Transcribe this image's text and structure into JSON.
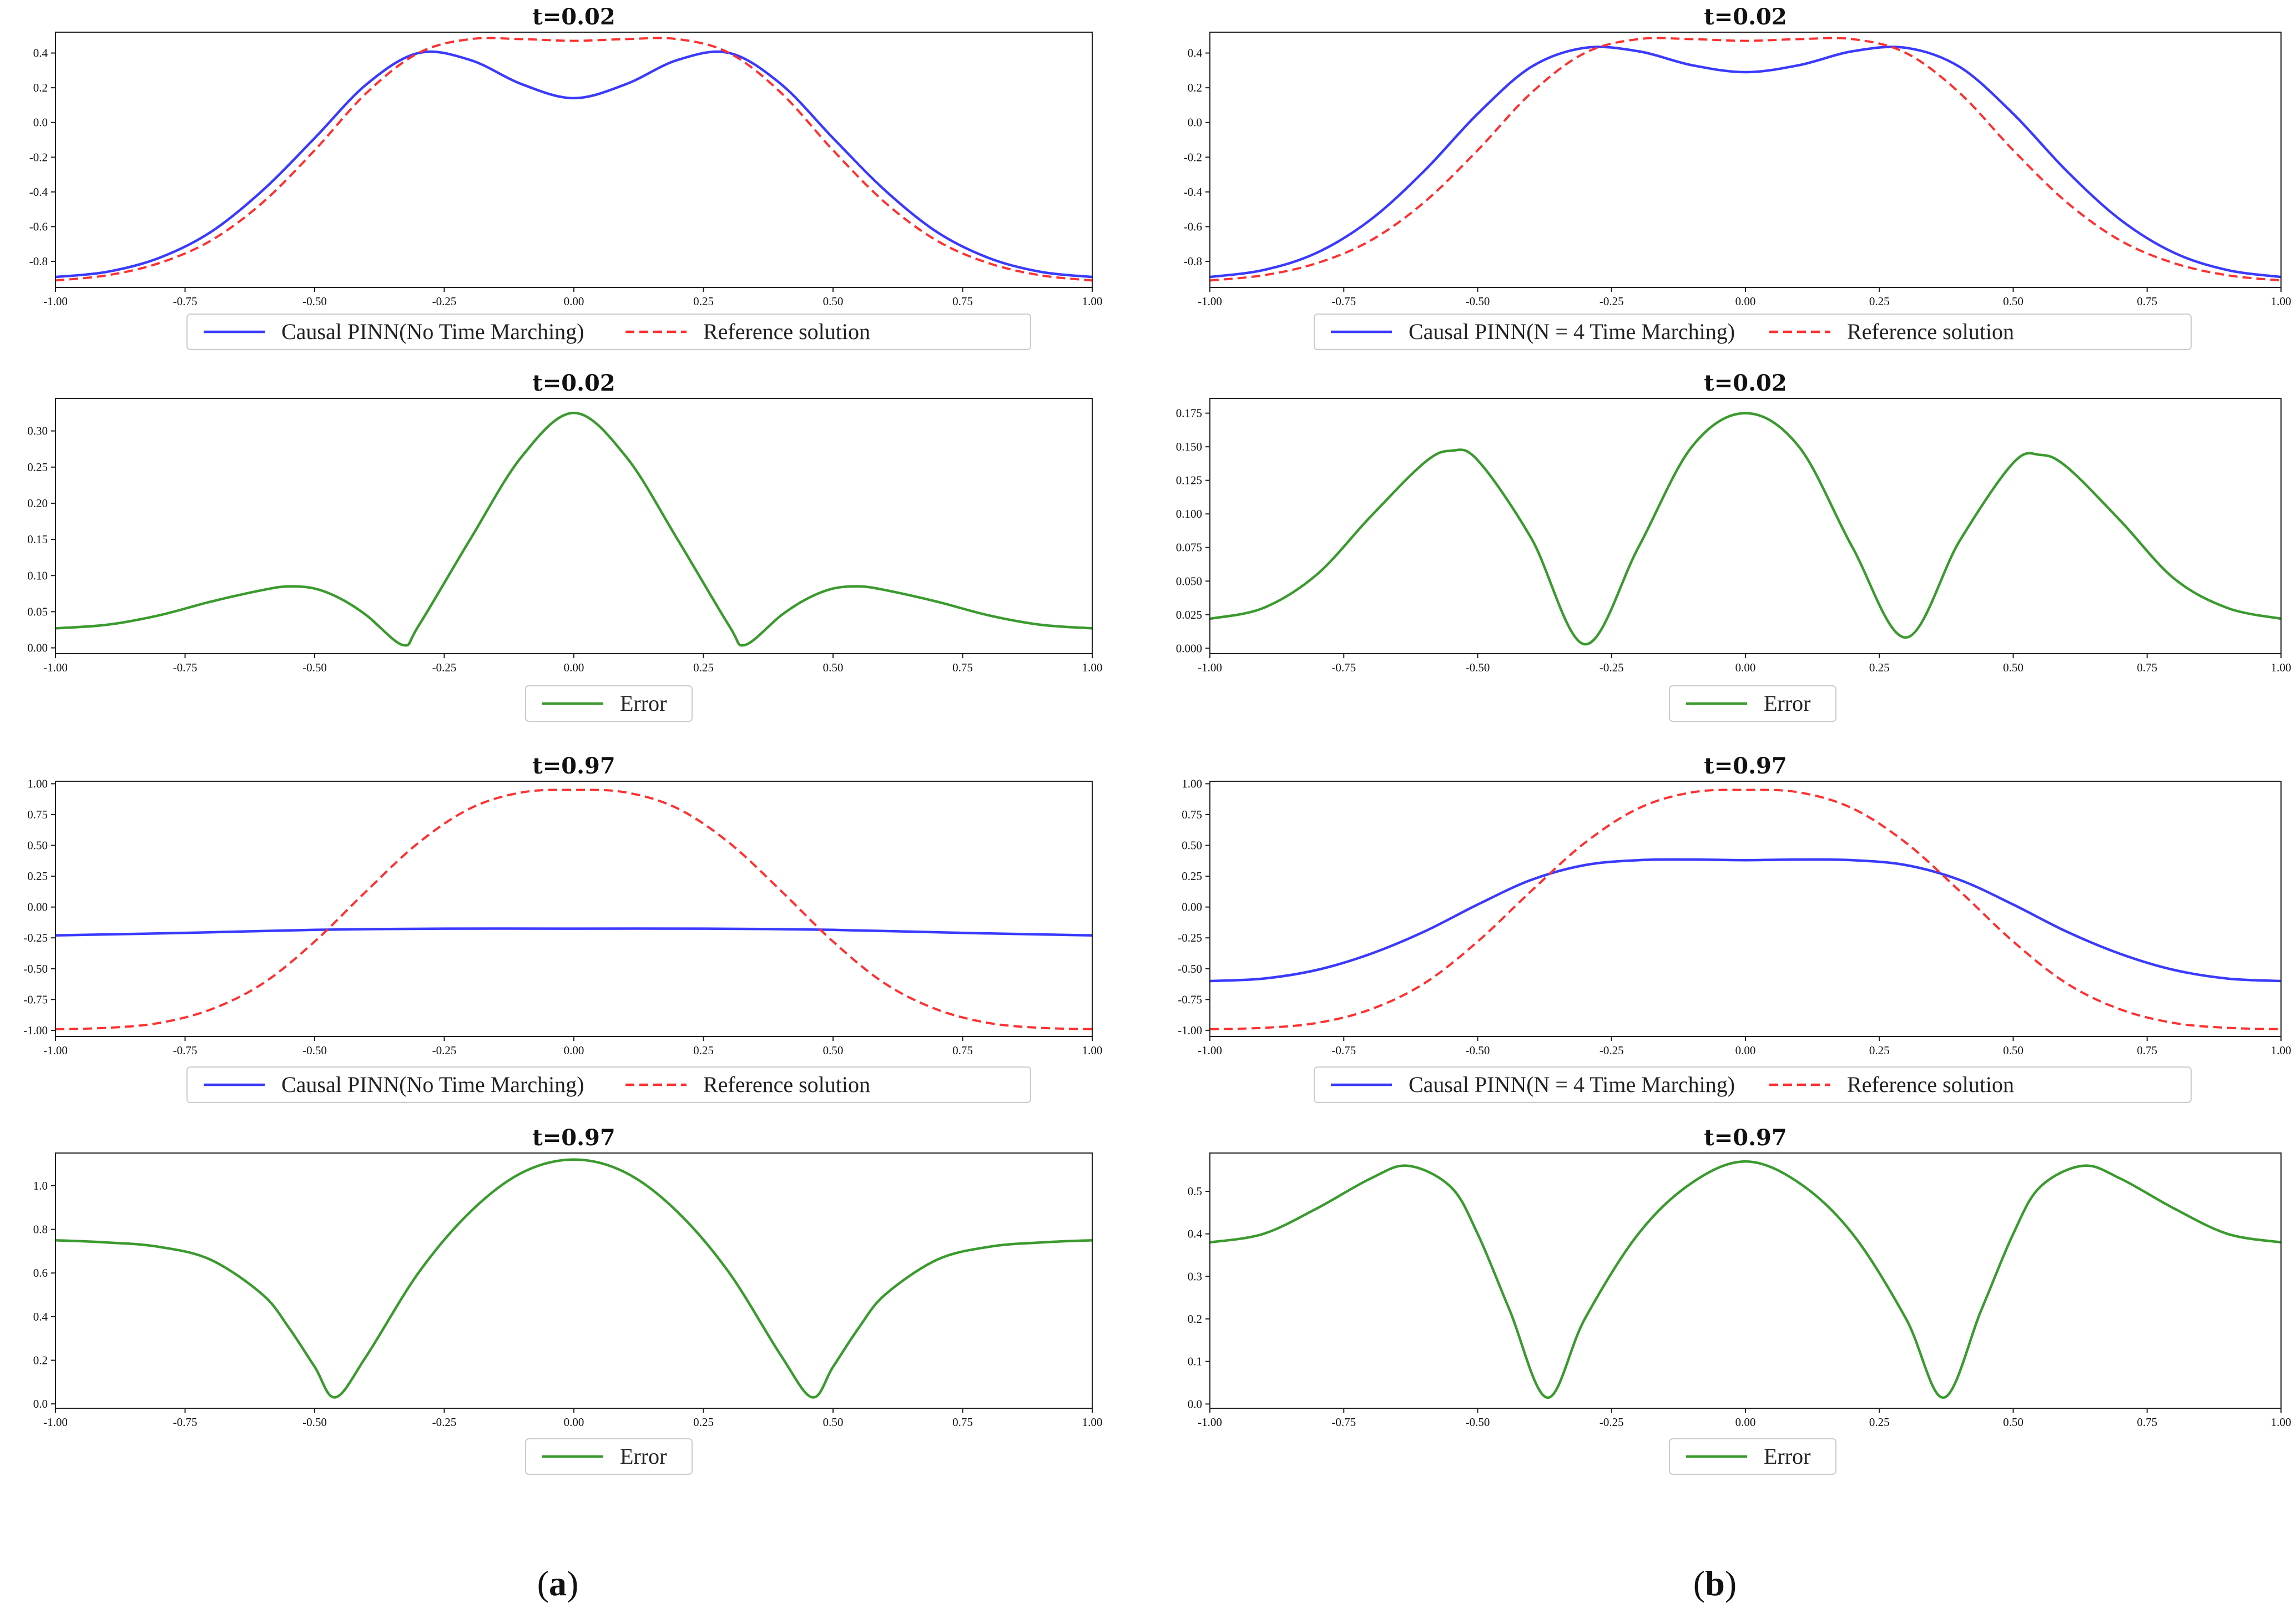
{
  "colors": {
    "model": "#3a3aff",
    "reference": "#ff3030",
    "error": "#3a9a2e",
    "axis": "#222222"
  },
  "panel_labels": {
    "a": "a",
    "b": "b"
  },
  "chart_data": [
    {
      "id": "a1",
      "type": "line",
      "title": "t=0.02",
      "xlim": [
        -1,
        1
      ],
      "ylim": [
        -0.95,
        0.52
      ],
      "xticks": [
        -1.0,
        -0.75,
        -0.5,
        -0.25,
        0.0,
        0.25,
        0.5,
        0.75,
        1.0
      ],
      "xtick_labels": [
        "-1.00",
        "-0.75",
        "-0.50",
        "-0.25",
        "0.00",
        "0.25",
        "0.50",
        "0.75",
        "1.00"
      ],
      "yticks": [
        -0.8,
        -0.6,
        -0.4,
        -0.2,
        0.0,
        0.2,
        0.4
      ],
      "ytick_labels": [
        "-0.8",
        "-0.6",
        "-0.4",
        "-0.2",
        "0.0",
        "0.2",
        "0.4"
      ],
      "legend": [
        "Causal PINN(No Time Marching)",
        "Reference solution"
      ],
      "series": [
        {
          "name": "Causal PINN(No Time Marching)",
          "style": "solid",
          "color": "model",
          "x": [
            -1.0,
            -0.9,
            -0.8,
            -0.7,
            -0.6,
            -0.5,
            -0.4,
            -0.3,
            -0.2,
            -0.1,
            0.0,
            0.1,
            0.2,
            0.3,
            0.4,
            0.5,
            0.6,
            0.7,
            0.8,
            0.9,
            1.0
          ],
          "y": [
            -0.89,
            -0.86,
            -0.78,
            -0.63,
            -0.39,
            -0.09,
            0.22,
            0.4,
            0.36,
            0.22,
            0.14,
            0.22,
            0.36,
            0.4,
            0.22,
            -0.09,
            -0.39,
            -0.63,
            -0.78,
            -0.86,
            -0.89
          ]
        },
        {
          "name": "Reference solution",
          "style": "dashed",
          "color": "reference",
          "x": [
            -1.0,
            -0.9,
            -0.8,
            -0.7,
            -0.6,
            -0.5,
            -0.4,
            -0.3,
            -0.2,
            -0.1,
            0.0,
            0.1,
            0.2,
            0.3,
            0.4,
            0.5,
            0.6,
            0.7,
            0.8,
            0.9,
            1.0
          ],
          "y": [
            -0.91,
            -0.88,
            -0.81,
            -0.68,
            -0.46,
            -0.16,
            0.17,
            0.4,
            0.48,
            0.48,
            0.47,
            0.48,
            0.48,
            0.4,
            0.17,
            -0.16,
            -0.46,
            -0.68,
            -0.81,
            -0.88,
            -0.91
          ]
        }
      ]
    },
    {
      "id": "b1",
      "type": "line",
      "title": "t=0.02",
      "xlim": [
        -1,
        1
      ],
      "ylim": [
        -0.95,
        0.52
      ],
      "xticks": [
        -1.0,
        -0.75,
        -0.5,
        -0.25,
        0.0,
        0.25,
        0.5,
        0.75,
        1.0
      ],
      "xtick_labels": [
        "-1.00",
        "-0.75",
        "-0.50",
        "-0.25",
        "0.00",
        "0.25",
        "0.50",
        "0.75",
        "1.00"
      ],
      "yticks": [
        -0.8,
        -0.6,
        -0.4,
        -0.2,
        0.0,
        0.2,
        0.4
      ],
      "ytick_labels": [
        "-0.8",
        "-0.6",
        "-0.4",
        "-0.2",
        "0.0",
        "0.2",
        "0.4"
      ],
      "legend": [
        "Causal PINN(N = 4 Time Marching)",
        "Reference solution"
      ],
      "series": [
        {
          "name": "Causal PINN(N = 4 Time Marching)",
          "style": "solid",
          "color": "model",
          "x": [
            -1.0,
            -0.9,
            -0.8,
            -0.7,
            -0.6,
            -0.5,
            -0.4,
            -0.3,
            -0.2,
            -0.1,
            0.0,
            0.1,
            0.2,
            0.3,
            0.4,
            0.5,
            0.6,
            0.7,
            0.8,
            0.9,
            1.0
          ],
          "y": [
            -0.89,
            -0.85,
            -0.75,
            -0.56,
            -0.28,
            0.05,
            0.32,
            0.43,
            0.41,
            0.33,
            0.29,
            0.33,
            0.41,
            0.43,
            0.32,
            0.05,
            -0.28,
            -0.56,
            -0.75,
            -0.85,
            -0.89
          ]
        },
        {
          "name": "Reference solution",
          "style": "dashed",
          "color": "reference",
          "x": [
            -1.0,
            -0.9,
            -0.8,
            -0.7,
            -0.6,
            -0.5,
            -0.4,
            -0.3,
            -0.2,
            -0.1,
            0.0,
            0.1,
            0.2,
            0.3,
            0.4,
            0.5,
            0.6,
            0.7,
            0.8,
            0.9,
            1.0
          ],
          "y": [
            -0.91,
            -0.88,
            -0.81,
            -0.68,
            -0.46,
            -0.16,
            0.17,
            0.4,
            0.48,
            0.48,
            0.47,
            0.48,
            0.48,
            0.4,
            0.17,
            -0.16,
            -0.46,
            -0.68,
            -0.81,
            -0.88,
            -0.91
          ]
        }
      ]
    },
    {
      "id": "a2",
      "type": "line",
      "title": "t=0.02",
      "xlim": [
        -1,
        1
      ],
      "ylim": [
        -0.008,
        0.345
      ],
      "xticks": [
        -1.0,
        -0.75,
        -0.5,
        -0.25,
        0.0,
        0.25,
        0.5,
        0.75,
        1.0
      ],
      "xtick_labels": [
        "-1.00",
        "-0.75",
        "-0.50",
        "-0.25",
        "0.00",
        "0.25",
        "0.50",
        "0.75",
        "1.00"
      ],
      "yticks": [
        0.0,
        0.05,
        0.1,
        0.15,
        0.2,
        0.25,
        0.3
      ],
      "ytick_labels": [
        "0.00",
        "0.05",
        "0.10",
        "0.15",
        "0.20",
        "0.25",
        "0.30"
      ],
      "legend": [
        "Error"
      ],
      "series": [
        {
          "name": "Error",
          "style": "solid",
          "color": "error",
          "x": [
            -1.0,
            -0.9,
            -0.8,
            -0.7,
            -0.6,
            -0.55,
            -0.5,
            -0.45,
            -0.4,
            -0.33,
            -0.3,
            -0.2,
            -0.1,
            0.0,
            0.1,
            0.2,
            0.3,
            0.33,
            0.4,
            0.45,
            0.5,
            0.55,
            0.6,
            0.7,
            0.8,
            0.9,
            1.0
          ],
          "y": [
            0.027,
            0.032,
            0.045,
            0.064,
            0.08,
            0.085,
            0.082,
            0.068,
            0.045,
            0.004,
            0.03,
            0.15,
            0.265,
            0.325,
            0.265,
            0.15,
            0.03,
            0.004,
            0.045,
            0.068,
            0.082,
            0.085,
            0.08,
            0.064,
            0.045,
            0.032,
            0.027
          ]
        }
      ]
    },
    {
      "id": "b2",
      "type": "line",
      "title": "t=0.02",
      "xlim": [
        -1,
        1
      ],
      "ylim": [
        -0.004,
        0.186
      ],
      "xticks": [
        -1.0,
        -0.75,
        -0.5,
        -0.25,
        0.0,
        0.25,
        0.5,
        0.75,
        1.0
      ],
      "xtick_labels": [
        "-1.00",
        "-0.75",
        "-0.50",
        "-0.25",
        "0.00",
        "0.25",
        "0.50",
        "0.75",
        "1.00"
      ],
      "yticks": [
        0.0,
        0.025,
        0.05,
        0.075,
        0.1,
        0.125,
        0.15,
        0.175
      ],
      "ytick_labels": [
        "0.000",
        "0.025",
        "0.050",
        "0.075",
        "0.100",
        "0.125",
        "0.150",
        "0.175"
      ],
      "legend": [
        "Error"
      ],
      "series": [
        {
          "name": "Error",
          "style": "solid",
          "color": "error",
          "x": [
            -1.0,
            -0.9,
            -0.8,
            -0.7,
            -0.6,
            -0.55,
            -0.5,
            -0.4,
            -0.3,
            -0.2,
            -0.1,
            0.0,
            0.1,
            0.2,
            0.3,
            0.4,
            0.5,
            0.55,
            0.6,
            0.7,
            0.8,
            0.9,
            1.0
          ],
          "y": [
            0.022,
            0.03,
            0.055,
            0.098,
            0.138,
            0.147,
            0.14,
            0.082,
            0.003,
            0.075,
            0.15,
            0.175,
            0.15,
            0.075,
            0.008,
            0.08,
            0.138,
            0.144,
            0.135,
            0.095,
            0.052,
            0.03,
            0.022
          ]
        }
      ]
    },
    {
      "id": "a3",
      "type": "line",
      "title": "t=0.97",
      "xlim": [
        -1,
        1
      ],
      "ylim": [
        -1.05,
        1.02
      ],
      "xticks": [
        -1.0,
        -0.75,
        -0.5,
        -0.25,
        0.0,
        0.25,
        0.5,
        0.75,
        1.0
      ],
      "xtick_labels": [
        "-1.00",
        "-0.75",
        "-0.50",
        "-0.25",
        "0.00",
        "0.25",
        "0.50",
        "0.75",
        "1.00"
      ],
      "yticks": [
        -1.0,
        -0.75,
        -0.5,
        -0.25,
        0.0,
        0.25,
        0.5,
        0.75,
        1.0
      ],
      "ytick_labels": [
        "-1.00",
        "-0.75",
        "-0.50",
        "-0.25",
        "0.00",
        "0.25",
        "0.50",
        "0.75",
        "1.00"
      ],
      "legend": [
        "Causal PINN(No Time Marching)",
        "Reference solution"
      ],
      "series": [
        {
          "name": "Causal PINN(No Time Marching)",
          "style": "solid",
          "color": "model",
          "x": [
            -1.0,
            -0.75,
            -0.5,
            -0.25,
            0.0,
            0.25,
            0.5,
            0.75,
            1.0
          ],
          "y": [
            -0.23,
            -0.21,
            -0.185,
            -0.175,
            -0.175,
            -0.175,
            -0.185,
            -0.21,
            -0.23
          ]
        },
        {
          "name": "Reference solution",
          "style": "dashed",
          "color": "reference",
          "x": [
            -1.0,
            -0.9,
            -0.8,
            -0.7,
            -0.6,
            -0.5,
            -0.4,
            -0.3,
            -0.2,
            -0.1,
            0.0,
            0.1,
            0.2,
            0.3,
            0.4,
            0.5,
            0.6,
            0.7,
            0.8,
            0.9,
            1.0
          ],
          "y": [
            -0.99,
            -0.98,
            -0.94,
            -0.83,
            -0.62,
            -0.28,
            0.13,
            0.52,
            0.8,
            0.93,
            0.95,
            0.93,
            0.8,
            0.52,
            0.13,
            -0.28,
            -0.62,
            -0.83,
            -0.94,
            -0.98,
            -0.99
          ]
        }
      ]
    },
    {
      "id": "b3",
      "type": "line",
      "title": "t=0.97",
      "xlim": [
        -1,
        1
      ],
      "ylim": [
        -1.05,
        1.02
      ],
      "xticks": [
        -1.0,
        -0.75,
        -0.5,
        -0.25,
        0.0,
        0.25,
        0.5,
        0.75,
        1.0
      ],
      "xtick_labels": [
        "-1.00",
        "-0.75",
        "-0.50",
        "-0.25",
        "0.00",
        "0.25",
        "0.50",
        "0.75",
        "1.00"
      ],
      "yticks": [
        -1.0,
        -0.75,
        -0.5,
        -0.25,
        0.0,
        0.25,
        0.5,
        0.75,
        1.0
      ],
      "ytick_labels": [
        "-1.00",
        "-0.75",
        "-0.50",
        "-0.25",
        "0.00",
        "0.25",
        "0.50",
        "0.75",
        "1.00"
      ],
      "legend": [
        "Causal PINN(N = 4 Time Marching)",
        "Reference solution"
      ],
      "series": [
        {
          "name": "Causal PINN(N = 4 Time Marching)",
          "style": "solid",
          "color": "model",
          "x": [
            -1.0,
            -0.9,
            -0.8,
            -0.7,
            -0.6,
            -0.5,
            -0.4,
            -0.3,
            -0.2,
            -0.1,
            0.0,
            0.1,
            0.2,
            0.3,
            0.4,
            0.5,
            0.6,
            0.7,
            0.8,
            0.9,
            1.0
          ],
          "y": [
            -0.6,
            -0.58,
            -0.51,
            -0.38,
            -0.2,
            0.02,
            0.22,
            0.34,
            0.38,
            0.385,
            0.38,
            0.385,
            0.38,
            0.34,
            0.22,
            0.02,
            -0.2,
            -0.38,
            -0.51,
            -0.58,
            -0.6
          ]
        },
        {
          "name": "Reference solution",
          "style": "dashed",
          "color": "reference",
          "x": [
            -1.0,
            -0.9,
            -0.8,
            -0.7,
            -0.6,
            -0.5,
            -0.4,
            -0.3,
            -0.2,
            -0.1,
            0.0,
            0.1,
            0.2,
            0.3,
            0.4,
            0.5,
            0.6,
            0.7,
            0.8,
            0.9,
            1.0
          ],
          "y": [
            -0.99,
            -0.98,
            -0.94,
            -0.83,
            -0.62,
            -0.28,
            0.13,
            0.52,
            0.8,
            0.93,
            0.95,
            0.93,
            0.8,
            0.52,
            0.13,
            -0.28,
            -0.62,
            -0.83,
            -0.94,
            -0.98,
            -0.99
          ]
        }
      ]
    },
    {
      "id": "a4",
      "type": "line",
      "title": "t=0.97",
      "xlim": [
        -1,
        1
      ],
      "ylim": [
        -0.02,
        1.15
      ],
      "xticks": [
        -1.0,
        -0.75,
        -0.5,
        -0.25,
        0.0,
        0.25,
        0.5,
        0.75,
        1.0
      ],
      "xtick_labels": [
        "-1.00",
        "-0.75",
        "-0.50",
        "-0.25",
        "0.00",
        "0.25",
        "0.50",
        "0.75",
        "1.00"
      ],
      "yticks": [
        0.0,
        0.2,
        0.4,
        0.6,
        0.8,
        1.0
      ],
      "ytick_labels": [
        "0.0",
        "0.2",
        "0.4",
        "0.6",
        "0.8",
        "1.0"
      ],
      "legend": [
        "Error"
      ],
      "series": [
        {
          "name": "Error",
          "style": "solid",
          "color": "error",
          "x": [
            -1.0,
            -0.9,
            -0.8,
            -0.7,
            -0.6,
            -0.55,
            -0.5,
            -0.46,
            -0.4,
            -0.3,
            -0.2,
            -0.1,
            0.0,
            0.1,
            0.2,
            0.3,
            0.4,
            0.46,
            0.5,
            0.55,
            0.6,
            0.7,
            0.8,
            0.9,
            1.0
          ],
          "y": [
            0.75,
            0.74,
            0.72,
            0.66,
            0.5,
            0.35,
            0.17,
            0.03,
            0.22,
            0.6,
            0.88,
            1.06,
            1.12,
            1.06,
            0.88,
            0.6,
            0.22,
            0.03,
            0.17,
            0.35,
            0.5,
            0.66,
            0.72,
            0.74,
            0.75
          ]
        }
      ]
    },
    {
      "id": "b4",
      "type": "line",
      "title": "t=0.97",
      "xlim": [
        -1,
        1
      ],
      "ylim": [
        -0.01,
        0.59
      ],
      "xticks": [
        -1.0,
        -0.75,
        -0.5,
        -0.25,
        0.0,
        0.25,
        0.5,
        0.75,
        1.0
      ],
      "xtick_labels": [
        "-1.00",
        "-0.75",
        "-0.50",
        "-0.25",
        "0.00",
        "0.25",
        "0.50",
        "0.75",
        "1.00"
      ],
      "yticks": [
        0.0,
        0.1,
        0.2,
        0.3,
        0.4,
        0.5
      ],
      "ytick_labels": [
        "0.0",
        "0.1",
        "0.2",
        "0.3",
        "0.4",
        "0.5"
      ],
      "legend": [
        "Error"
      ],
      "series": [
        {
          "name": "Error",
          "style": "solid",
          "color": "error",
          "x": [
            -1.0,
            -0.9,
            -0.8,
            -0.7,
            -0.63,
            -0.55,
            -0.5,
            -0.44,
            -0.37,
            -0.3,
            -0.2,
            -0.1,
            0.0,
            0.1,
            0.2,
            0.3,
            0.37,
            0.44,
            0.5,
            0.55,
            0.63,
            0.7,
            0.8,
            0.9,
            1.0
          ],
          "y": [
            0.38,
            0.4,
            0.46,
            0.53,
            0.56,
            0.51,
            0.4,
            0.22,
            0.015,
            0.2,
            0.4,
            0.52,
            0.57,
            0.52,
            0.4,
            0.2,
            0.015,
            0.22,
            0.4,
            0.51,
            0.56,
            0.53,
            0.46,
            0.4,
            0.38
          ]
        }
      ]
    }
  ]
}
